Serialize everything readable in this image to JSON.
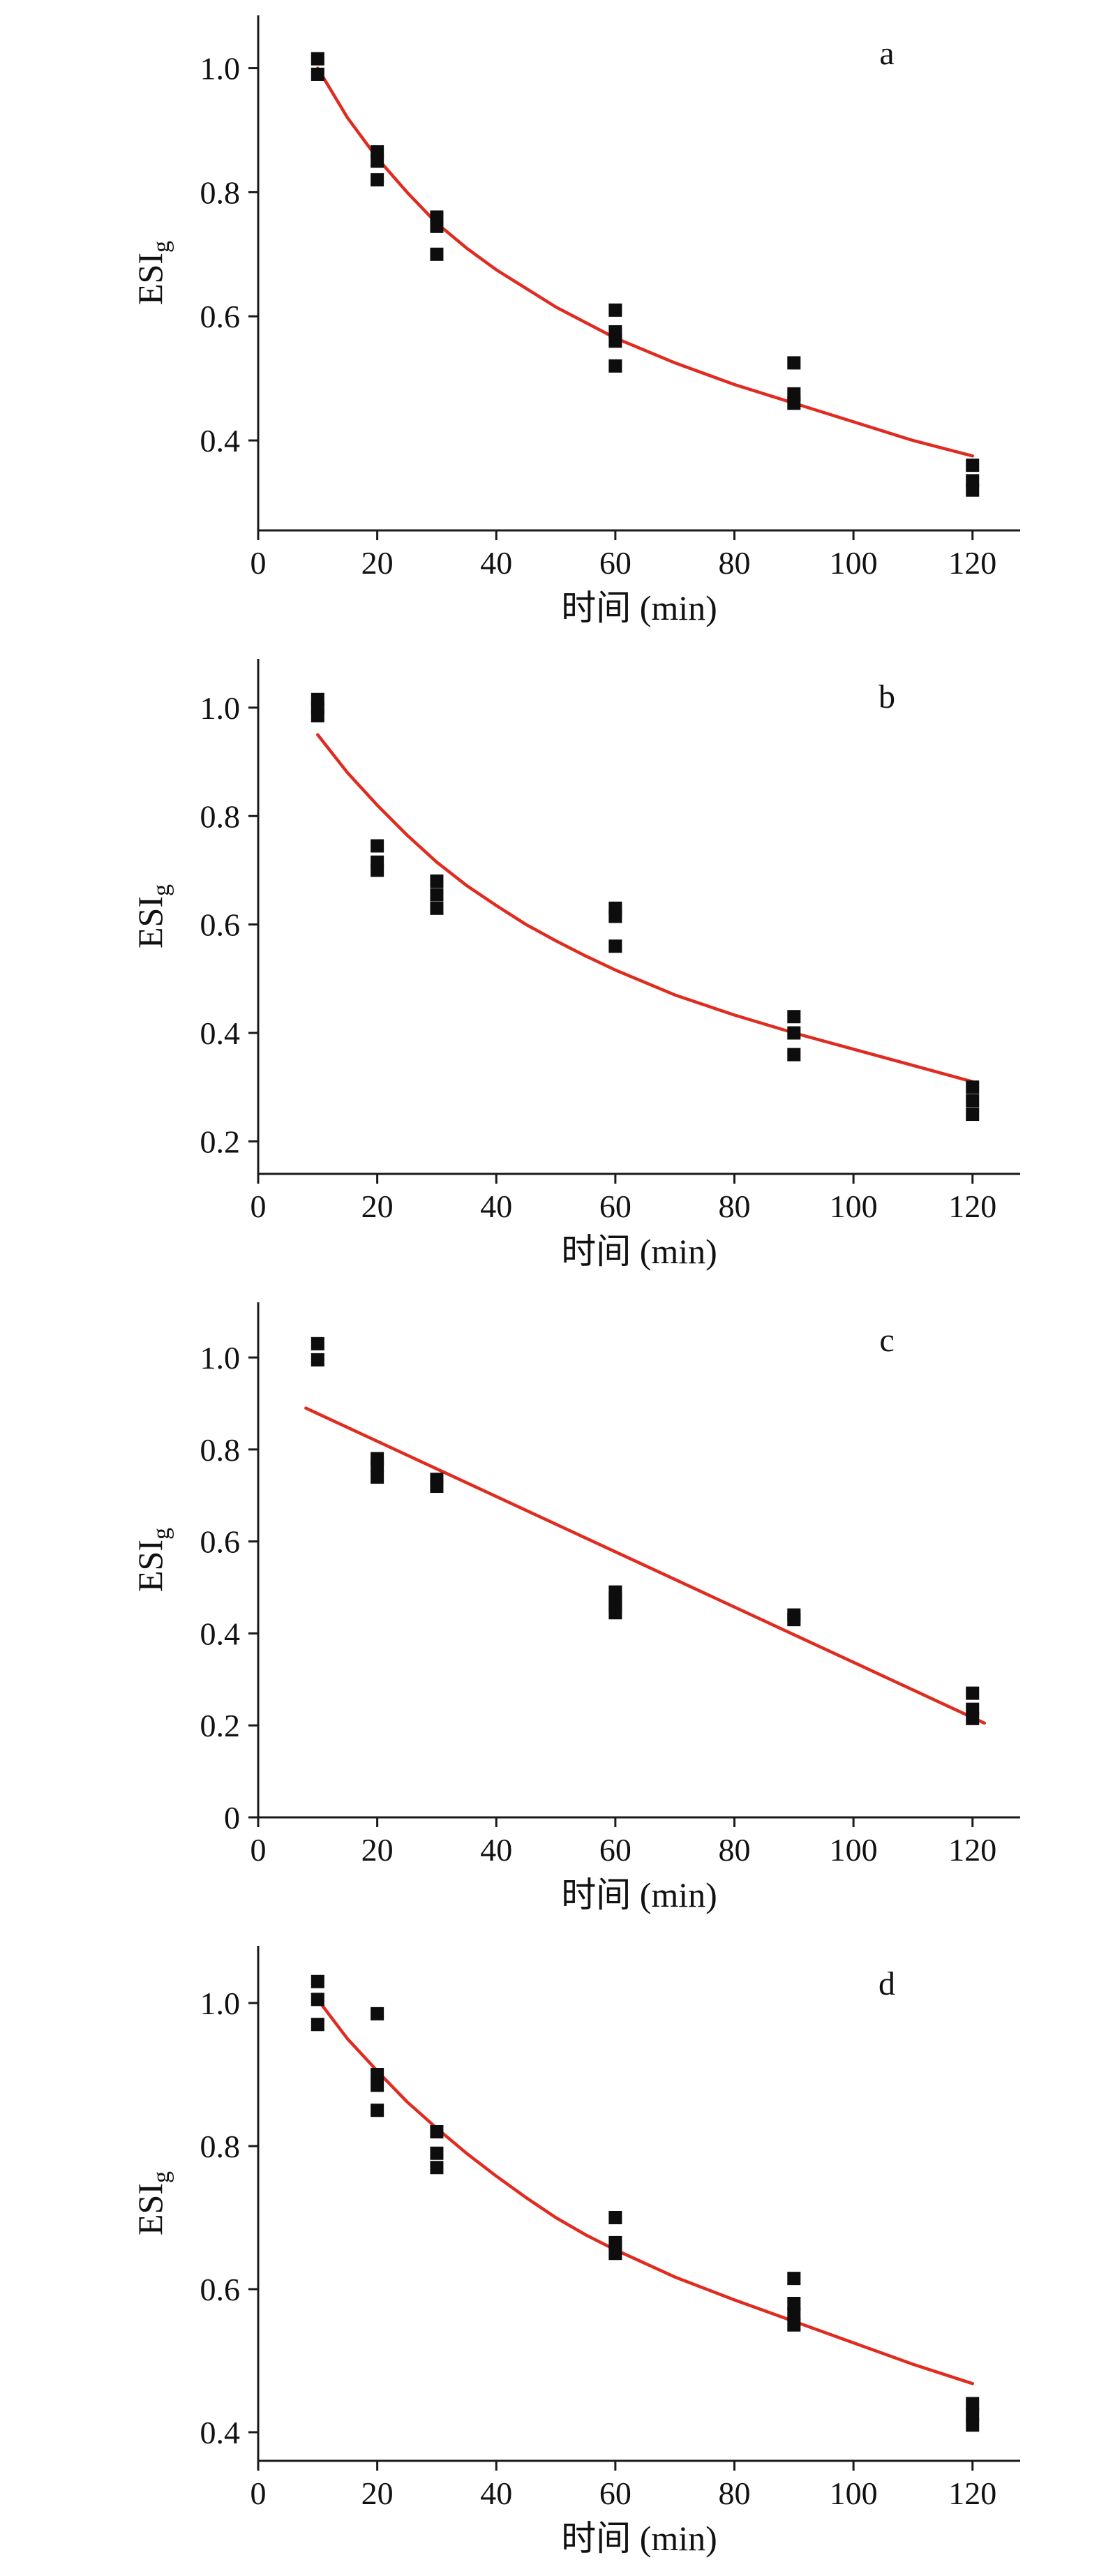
{
  "figure": {
    "background": "#ffffff",
    "axis_color": "#1a1a1a",
    "text_color": "#111111"
  },
  "chart_data": [
    {
      "type": "scatter",
      "panel_label": "a",
      "xlabel": "时间 (min)",
      "ylabel": "ESI",
      "ylabel_sub": "g",
      "marker_color": "#0d0d0d",
      "curve_color": "#e02b20",
      "grid": false,
      "legend": false,
      "xlim": [
        0,
        128
      ],
      "ylim": [
        0.255,
        1.085
      ],
      "xticks": [
        0,
        20,
        40,
        60,
        80,
        100,
        120
      ],
      "xtick_labels": [
        "0",
        "20",
        "40",
        "60",
        "80",
        "100",
        "120"
      ],
      "yticks": [
        0.4,
        0.6,
        0.8,
        1.0
      ],
      "ytick_labels": [
        "0.4",
        "0.6",
        "0.8",
        "1.0"
      ],
      "points": [
        [
          10,
          1.015
        ],
        [
          10,
          0.99
        ],
        [
          20,
          0.865
        ],
        [
          20,
          0.85
        ],
        [
          20,
          0.82
        ],
        [
          30,
          0.76
        ],
        [
          30,
          0.745
        ],
        [
          30,
          0.7
        ],
        [
          60,
          0.61
        ],
        [
          60,
          0.575
        ],
        [
          60,
          0.56
        ],
        [
          60,
          0.52
        ],
        [
          90,
          0.525
        ],
        [
          90,
          0.475
        ],
        [
          90,
          0.46
        ],
        [
          120,
          0.36
        ],
        [
          120,
          0.335
        ],
        [
          120,
          0.32
        ]
      ],
      "fit_curve": [
        [
          10,
          1.0
        ],
        [
          15,
          0.92
        ],
        [
          20,
          0.855
        ],
        [
          25,
          0.8
        ],
        [
          30,
          0.75
        ],
        [
          35,
          0.71
        ],
        [
          40,
          0.675
        ],
        [
          45,
          0.645
        ],
        [
          50,
          0.615
        ],
        [
          55,
          0.59
        ],
        [
          60,
          0.565
        ],
        [
          70,
          0.525
        ],
        [
          80,
          0.49
        ],
        [
          90,
          0.46
        ],
        [
          100,
          0.43
        ],
        [
          110,
          0.4
        ],
        [
          120,
          0.375
        ]
      ]
    },
    {
      "type": "scatter",
      "panel_label": "b",
      "xlabel": "时间 (min)",
      "ylabel": "ESI",
      "ylabel_sub": "g",
      "marker_color": "#0d0d0d",
      "curve_color": "#e02b20",
      "grid": false,
      "legend": false,
      "xlim": [
        0,
        128
      ],
      "ylim": [
        0.14,
        1.09
      ],
      "xticks": [
        0,
        20,
        40,
        60,
        80,
        100,
        120
      ],
      "xtick_labels": [
        "0",
        "20",
        "40",
        "60",
        "80",
        "100",
        "120"
      ],
      "yticks": [
        0.2,
        0.4,
        0.6,
        0.8,
        1.0
      ],
      "ytick_labels": [
        "0.2",
        "0.4",
        "0.6",
        "0.8",
        "1.0"
      ],
      "points": [
        [
          10,
          1.015
        ],
        [
          10,
          1.0
        ],
        [
          10,
          0.985
        ],
        [
          20,
          0.745
        ],
        [
          20,
          0.715
        ],
        [
          20,
          0.7
        ],
        [
          30,
          0.68
        ],
        [
          30,
          0.655
        ],
        [
          30,
          0.63
        ],
        [
          60,
          0.63
        ],
        [
          60,
          0.615
        ],
        [
          60,
          0.56
        ],
        [
          90,
          0.43
        ],
        [
          90,
          0.4
        ],
        [
          90,
          0.36
        ],
        [
          120,
          0.3
        ],
        [
          120,
          0.275
        ],
        [
          120,
          0.25
        ]
      ],
      "fit_curve": [
        [
          10,
          0.95
        ],
        [
          15,
          0.88
        ],
        [
          20,
          0.82
        ],
        [
          25,
          0.765
        ],
        [
          30,
          0.715
        ],
        [
          35,
          0.672
        ],
        [
          40,
          0.635
        ],
        [
          45,
          0.6
        ],
        [
          50,
          0.57
        ],
        [
          55,
          0.542
        ],
        [
          60,
          0.516
        ],
        [
          70,
          0.47
        ],
        [
          80,
          0.433
        ],
        [
          90,
          0.4
        ],
        [
          100,
          0.37
        ],
        [
          110,
          0.34
        ],
        [
          120,
          0.31
        ]
      ]
    },
    {
      "type": "scatter",
      "panel_label": "c",
      "xlabel": "时间 (min)",
      "ylabel": "ESI",
      "ylabel_sub": "g",
      "marker_color": "#0d0d0d",
      "curve_color": "#e02b20",
      "grid": false,
      "legend": false,
      "xlim": [
        0,
        128
      ],
      "ylim": [
        0,
        1.12
      ],
      "xticks": [
        0,
        20,
        40,
        60,
        80,
        100,
        120
      ],
      "xtick_labels": [
        "0",
        "20",
        "40",
        "60",
        "80",
        "100",
        "120"
      ],
      "yticks": [
        0,
        0.2,
        0.4,
        0.6,
        0.8,
        1.0
      ],
      "ytick_labels": [
        "0",
        "0.2",
        "0.4",
        "0.6",
        "0.8",
        "1.0"
      ],
      "points": [
        [
          10,
          1.03
        ],
        [
          10,
          0.995
        ],
        [
          20,
          0.78
        ],
        [
          20,
          0.765
        ],
        [
          20,
          0.74
        ],
        [
          30,
          0.735
        ],
        [
          30,
          0.72
        ],
        [
          60,
          0.49
        ],
        [
          60,
          0.475
        ],
        [
          60,
          0.46
        ],
        [
          60,
          0.445
        ],
        [
          90,
          0.44
        ],
        [
          90,
          0.43
        ],
        [
          120,
          0.27
        ],
        [
          120,
          0.235
        ],
        [
          120,
          0.215
        ]
      ],
      "fit_curve": [
        [
          8,
          0.89
        ],
        [
          122,
          0.205
        ]
      ]
    },
    {
      "type": "scatter",
      "panel_label": "d",
      "xlabel": "时间 (min)",
      "ylabel": "ESI",
      "ylabel_sub": "g",
      "marker_color": "#0d0d0d",
      "curve_color": "#e02b20",
      "grid": false,
      "legend": false,
      "xlim": [
        0,
        128
      ],
      "ylim": [
        0.36,
        1.08
      ],
      "xticks": [
        0,
        20,
        40,
        60,
        80,
        100,
        120
      ],
      "xtick_labels": [
        "0",
        "20",
        "40",
        "60",
        "80",
        "100",
        "120"
      ],
      "yticks": [
        0.4,
        0.6,
        0.8,
        1.0
      ],
      "ytick_labels": [
        "0.4",
        "0.6",
        "0.8",
        "1.0"
      ],
      "points": [
        [
          10,
          1.03
        ],
        [
          10,
          1.005
        ],
        [
          10,
          0.97
        ],
        [
          20,
          0.985
        ],
        [
          20,
          0.9
        ],
        [
          20,
          0.885
        ],
        [
          20,
          0.85
        ],
        [
          30,
          0.82
        ],
        [
          30,
          0.79
        ],
        [
          30,
          0.77
        ],
        [
          60,
          0.7
        ],
        [
          60,
          0.665
        ],
        [
          60,
          0.65
        ],
        [
          90,
          0.615
        ],
        [
          90,
          0.58
        ],
        [
          90,
          0.565
        ],
        [
          90,
          0.55
        ],
        [
          120,
          0.44
        ],
        [
          120,
          0.425
        ],
        [
          120,
          0.41
        ]
      ],
      "fit_curve": [
        [
          10,
          1.005
        ],
        [
          15,
          0.95
        ],
        [
          20,
          0.905
        ],
        [
          25,
          0.862
        ],
        [
          30,
          0.825
        ],
        [
          35,
          0.79
        ],
        [
          40,
          0.758
        ],
        [
          45,
          0.728
        ],
        [
          50,
          0.7
        ],
        [
          55,
          0.676
        ],
        [
          60,
          0.655
        ],
        [
          70,
          0.617
        ],
        [
          80,
          0.585
        ],
        [
          90,
          0.555
        ],
        [
          100,
          0.525
        ],
        [
          110,
          0.495
        ],
        [
          120,
          0.468
        ]
      ]
    }
  ]
}
